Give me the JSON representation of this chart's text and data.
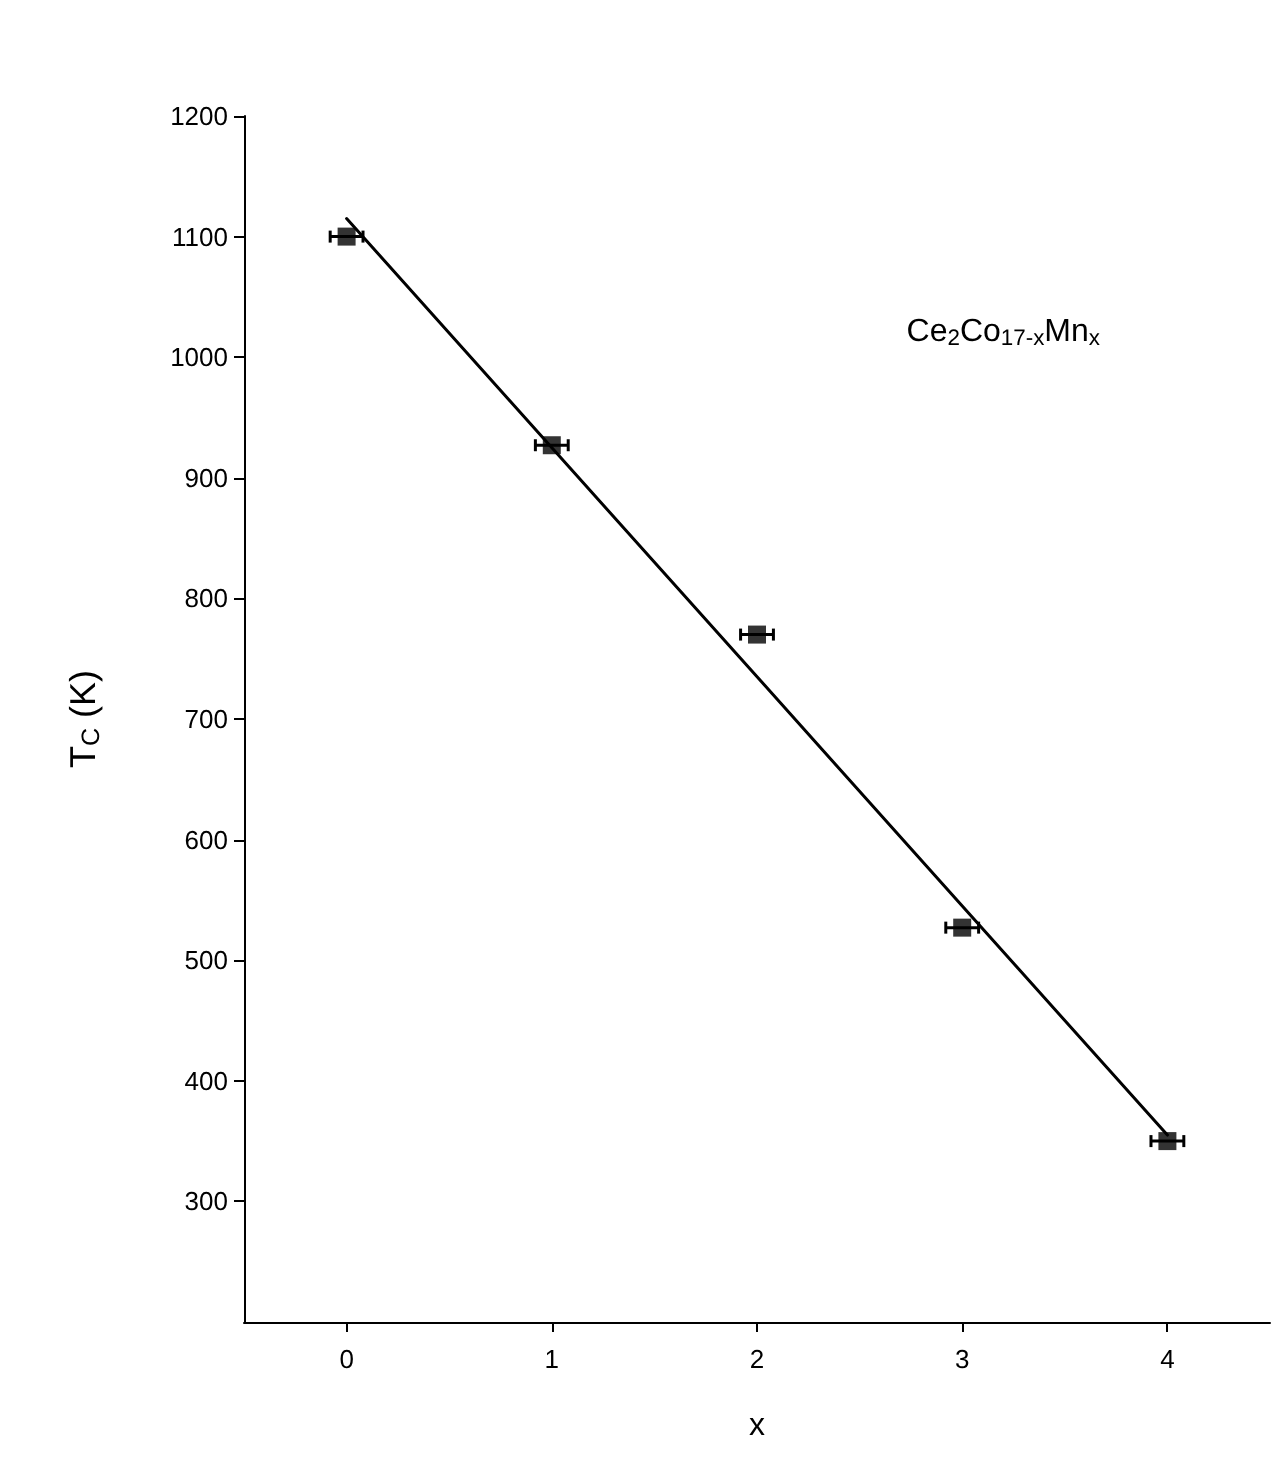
{
  "chart_data": {
    "type": "scatter",
    "xlabel": "x",
    "ylabel": "T$_{C}$ (K)",
    "annotations": [
      "Ce$_{2}$Co$_{17-x}$Mn$_{x}$"
    ],
    "x": [
      0,
      1,
      2,
      3,
      4
    ],
    "series": [
      {
        "type": "scatter",
        "color": "#000000",
        "values": [
          1100,
          927,
          770,
          527,
          350
        ],
        "xerrors": [
          0.08,
          0.08,
          0.08,
          0.08,
          0.08
        ]
      },
      {
        "type": "line",
        "color": "#000000",
        "x": [
          0,
          4
        ],
        "values": [
          1115,
          355
        ],
        "marker": "none"
      }
    ],
    "marker": "square",
    "xlim": [
      -0.5,
      4.5
    ],
    "xticks": [
      0,
      1,
      2,
      3,
      4
    ],
    "ylim": [
      200,
      1200
    ],
    "yticks": [
      300,
      400,
      500,
      600,
      700,
      800,
      900,
      1000,
      1100,
      1200
    ],
    "grid": false
  }
}
